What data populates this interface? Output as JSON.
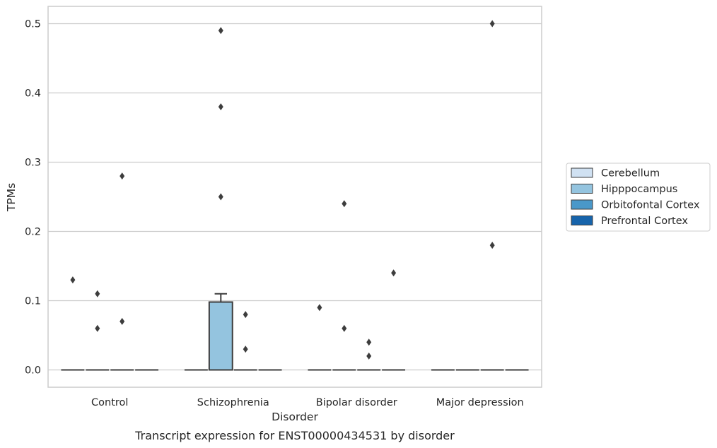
{
  "caption": "Transcript expression for ENST00000434531 by disorder",
  "chart_data": {
    "type": "box",
    "xlabel": "Disorder",
    "ylabel": "TPMs",
    "ylim": [
      -0.025,
      0.525
    ],
    "yticks": [
      0.0,
      0.1,
      0.2,
      0.3,
      0.4,
      0.5
    ],
    "ytick_labels": [
      "0.0",
      "0.1",
      "0.2",
      "0.3",
      "0.4",
      "0.5"
    ],
    "grid": true,
    "legend_position": "right",
    "categories": [
      "Control",
      "Schizophrenia",
      "Bipolar disorder",
      "Major depression"
    ],
    "series": [
      {
        "name": "Cerebellum",
        "color": "#d0e1f2"
      },
      {
        "name": "Hipppocampus",
        "color": "#94c4df"
      },
      {
        "name": "Orbitofontal Cortex",
        "color": "#4a98c9"
      },
      {
        "name": "Prefrontal Cortex",
        "color": "#1764ab"
      }
    ],
    "boxes": [
      {
        "category": "Control",
        "series": "Cerebellum",
        "q1": 0,
        "median": 0,
        "q3": 0,
        "whisker_low": 0,
        "whisker_high": 0,
        "outliers": [
          0.13
        ]
      },
      {
        "category": "Control",
        "series": "Hipppocampus",
        "q1": 0,
        "median": 0,
        "q3": 0,
        "whisker_low": 0,
        "whisker_high": 0,
        "outliers": [
          0.11,
          0.06
        ]
      },
      {
        "category": "Control",
        "series": "Orbitofontal Cortex",
        "q1": 0,
        "median": 0,
        "q3": 0,
        "whisker_low": 0,
        "whisker_high": 0,
        "outliers": [
          0.28,
          0.07
        ]
      },
      {
        "category": "Control",
        "series": "Prefrontal Cortex",
        "q1": 0,
        "median": 0,
        "q3": 0,
        "whisker_low": 0,
        "whisker_high": 0,
        "outliers": []
      },
      {
        "category": "Schizophrenia",
        "series": "Cerebellum",
        "q1": 0,
        "median": 0,
        "q3": 0,
        "whisker_low": 0,
        "whisker_high": 0,
        "outliers": []
      },
      {
        "category": "Schizophrenia",
        "series": "Hipppocampus",
        "q1": 0,
        "median": 0,
        "q3": 0.098,
        "whisker_low": 0,
        "whisker_high": 0.11,
        "outliers": [
          0.49,
          0.38,
          0.25
        ]
      },
      {
        "category": "Schizophrenia",
        "series": "Orbitofontal Cortex",
        "q1": 0,
        "median": 0,
        "q3": 0,
        "whisker_low": 0,
        "whisker_high": 0,
        "outliers": [
          0.08,
          0.03
        ]
      },
      {
        "category": "Schizophrenia",
        "series": "Prefrontal Cortex",
        "q1": 0,
        "median": 0,
        "q3": 0,
        "whisker_low": 0,
        "whisker_high": 0,
        "outliers": []
      },
      {
        "category": "Bipolar disorder",
        "series": "Cerebellum",
        "q1": 0,
        "median": 0,
        "q3": 0,
        "whisker_low": 0,
        "whisker_high": 0,
        "outliers": [
          0.09
        ]
      },
      {
        "category": "Bipolar disorder",
        "series": "Hipppocampus",
        "q1": 0,
        "median": 0,
        "q3": 0,
        "whisker_low": 0,
        "whisker_high": 0,
        "outliers": [
          0.24,
          0.06
        ]
      },
      {
        "category": "Bipolar disorder",
        "series": "Orbitofontal Cortex",
        "q1": 0,
        "median": 0,
        "q3": 0,
        "whisker_low": 0,
        "whisker_high": 0,
        "outliers": [
          0.04,
          0.02
        ]
      },
      {
        "category": "Bipolar disorder",
        "series": "Prefrontal Cortex",
        "q1": 0,
        "median": 0,
        "q3": 0,
        "whisker_low": 0,
        "whisker_high": 0,
        "outliers": [
          0.14
        ]
      },
      {
        "category": "Major depression",
        "series": "Cerebellum",
        "q1": 0,
        "median": 0,
        "q3": 0,
        "whisker_low": 0,
        "whisker_high": 0,
        "outliers": []
      },
      {
        "category": "Major depression",
        "series": "Hipppocampus",
        "q1": 0,
        "median": 0,
        "q3": 0,
        "whisker_low": 0,
        "whisker_high": 0,
        "outliers": []
      },
      {
        "category": "Major depression",
        "series": "Orbitofontal Cortex",
        "q1": 0,
        "median": 0,
        "q3": 0,
        "whisker_low": 0,
        "whisker_high": 0,
        "outliers": [
          0.5,
          0.18
        ]
      },
      {
        "category": "Major depression",
        "series": "Prefrontal Cortex",
        "q1": 0,
        "median": 0,
        "q3": 0,
        "whisker_low": 0,
        "whisker_high": 0,
        "outliers": []
      }
    ]
  }
}
